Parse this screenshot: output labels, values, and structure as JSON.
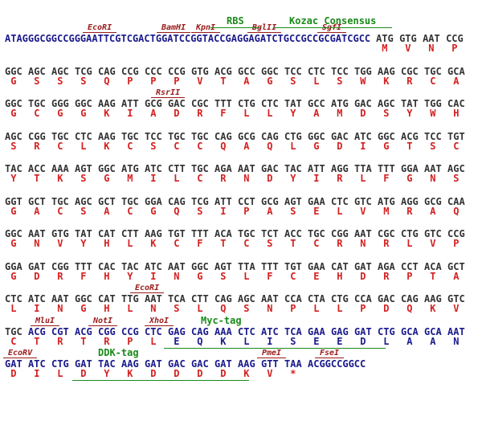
{
  "lines": [
    {
      "prefix": "ATAGGGCGGCCGGGAATTCGTCGACTGGATCCGGTACCGAGGAGATCTGCCGCCGCGATCGCC",
      "codons": [
        "ATG",
        "GTG",
        "AAT",
        "CCG"
      ],
      "amino_acids": [
        "M",
        "V",
        "N",
        "P"
      ],
      "features": [
        "EcoRI",
        "BamHI",
        "KpnI",
        "BglII",
        "SgfI",
        "RBS",
        "Kozac Consensus"
      ]
    },
    {
      "codons": [
        "GGC",
        "AGC",
        "AGC",
        "TCG",
        "CAG",
        "CCG",
        "CCC",
        "CCG",
        "GTG",
        "ACG",
        "GCC",
        "GGC",
        "TCC",
        "CTC",
        "TCC",
        "TGG",
        "AAG",
        "CGC",
        "TGC",
        "GCA"
      ],
      "amino_acids": [
        "G",
        "S",
        "S",
        "S",
        "Q",
        "P",
        "P",
        "P",
        "V",
        "T",
        "A",
        "G",
        "S",
        "L",
        "S",
        "W",
        "K",
        "R",
        "C",
        "A"
      ],
      "features": []
    },
    {
      "codons": [
        "GGC",
        "TGC",
        "GGG",
        "GGC",
        "AAG",
        "ATT",
        "GCG",
        "GAC",
        "CGC",
        "TTT",
        "CTG",
        "CTC",
        "TAT",
        "GCC",
        "ATG",
        "GAC",
        "AGC",
        "TAT",
        "TGG",
        "CAC"
      ],
      "amino_acids": [
        "G",
        "C",
        "G",
        "G",
        "K",
        "I",
        "A",
        "D",
        "R",
        "F",
        "L",
        "L",
        "Y",
        "A",
        "M",
        "D",
        "S",
        "Y",
        "W",
        "H"
      ],
      "features": [
        "RsrII"
      ]
    },
    {
      "codons": [
        "AGC",
        "CGG",
        "TGC",
        "CTC",
        "AAG",
        "TGC",
        "TCC",
        "TGC",
        "TGC",
        "CAG",
        "GCG",
        "CAG",
        "CTG",
        "GGC",
        "GAC",
        "ATC",
        "GGC",
        "ACG",
        "TCC",
        "TGT"
      ],
      "amino_acids": [
        "S",
        "R",
        "C",
        "L",
        "K",
        "C",
        "S",
        "C",
        "C",
        "Q",
        "A",
        "Q",
        "L",
        "G",
        "D",
        "I",
        "G",
        "T",
        "S",
        "C"
      ],
      "features": []
    },
    {
      "codons": [
        "TAC",
        "ACC",
        "AAA",
        "AGT",
        "GGC",
        "ATG",
        "ATC",
        "CTT",
        "TGC",
        "AGA",
        "AAT",
        "GAC",
        "TAC",
        "ATT",
        "AGG",
        "TTA",
        "TTT",
        "GGA",
        "AAT",
        "AGC"
      ],
      "amino_acids": [
        "Y",
        "T",
        "K",
        "S",
        "G",
        "M",
        "I",
        "L",
        "C",
        "R",
        "N",
        "D",
        "Y",
        "I",
        "R",
        "L",
        "F",
        "G",
        "N",
        "S"
      ],
      "features": []
    },
    {
      "codons": [
        "GGT",
        "GCT",
        "TGC",
        "AGC",
        "GCT",
        "TGC",
        "GGA",
        "CAG",
        "TCG",
        "ATT",
        "CCT",
        "GCG",
        "AGT",
        "GAA",
        "CTC",
        "GTC",
        "ATG",
        "AGG",
        "GCG",
        "CAA"
      ],
      "amino_acids": [
        "G",
        "A",
        "C",
        "S",
        "A",
        "C",
        "G",
        "Q",
        "S",
        "I",
        "P",
        "A",
        "S",
        "E",
        "L",
        "V",
        "M",
        "R",
        "A",
        "Q"
      ],
      "features": []
    },
    {
      "codons": [
        "GGC",
        "AAT",
        "GTG",
        "TAT",
        "CAT",
        "CTT",
        "AAG",
        "TGT",
        "TTT",
        "ACA",
        "TGC",
        "TCT",
        "ACC",
        "TGC",
        "CGG",
        "AAT",
        "CGC",
        "CTG",
        "GTC",
        "CCG"
      ],
      "amino_acids": [
        "G",
        "N",
        "V",
        "Y",
        "H",
        "L",
        "K",
        "C",
        "F",
        "T",
        "C",
        "S",
        "T",
        "C",
        "R",
        "N",
        "R",
        "L",
        "V",
        "P"
      ],
      "features": []
    },
    {
      "codons": [
        "GGA",
        "GAT",
        "CGG",
        "TTT",
        "CAC",
        "TAC",
        "ATC",
        "AAT",
        "GGC",
        "AGT",
        "TTA",
        "TTT",
        "TGT",
        "GAA",
        "CAT",
        "GAT",
        "AGA",
        "CCT",
        "ACA",
        "GCT"
      ],
      "amino_acids": [
        "G",
        "D",
        "R",
        "F",
        "H",
        "Y",
        "I",
        "N",
        "G",
        "S",
        "L",
        "F",
        "C",
        "E",
        "H",
        "D",
        "R",
        "P",
        "T",
        "A"
      ],
      "features": []
    },
    {
      "codons": [
        "CTC",
        "ATC",
        "AAT",
        "GGC",
        "CAT",
        "TTG",
        "AAT",
        "TCA",
        "CTT",
        "CAG",
        "AGC",
        "AAT",
        "CCA",
        "CTA",
        "CTG",
        "CCA",
        "GAC",
        "CAG",
        "AAG",
        "GTC"
      ],
      "amino_acids": [
        "L",
        "I",
        "N",
        "G",
        "H",
        "L",
        "N",
        "S",
        "L",
        "Q",
        "S",
        "N",
        "P",
        "L",
        "L",
        "P",
        "D",
        "Q",
        "K",
        "V"
      ],
      "features": [
        "EcoRI"
      ]
    },
    {
      "codons": [
        "TGC",
        "ACG",
        "CGT",
        "ACG",
        "CGG",
        "CCG",
        "CTC",
        "GAG",
        "CAG",
        "AAA",
        "CTC",
        "ATC",
        "TCA",
        "GAA",
        "GAG",
        "GAT",
        "CTG",
        "GCA",
        "GCA",
        "AAT"
      ],
      "amino_acids": [
        "C",
        "T",
        "R",
        "T",
        "R",
        "P",
        "L",
        "E",
        "Q",
        "K",
        "L",
        "I",
        "S",
        "E",
        "E",
        "D",
        "L",
        "A",
        "A",
        "N"
      ],
      "features": [
        "MluI",
        "NotI",
        "XhoI",
        "Myc-tag"
      ]
    },
    {
      "codons": [
        "GAT",
        "ATC",
        "CTG",
        "GAT",
        "TAC",
        "AAG",
        "GAT",
        "GAC",
        "GAC",
        "GAT",
        "AAG",
        "GTT",
        "TAA"
      ],
      "suffix": "ACGGCCGGCC",
      "amino_acids": [
        "D",
        "I",
        "L",
        "D",
        "Y",
        "K",
        "D",
        "D",
        "D",
        "D",
        "K",
        "V",
        "*"
      ],
      "features": [
        "EcoRV",
        "DDK-tag",
        "PmeI",
        "FseI"
      ]
    }
  ]
}
